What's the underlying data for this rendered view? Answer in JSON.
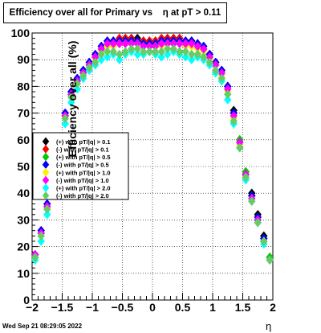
{
  "chart_data": {
    "type": "scatter",
    "title": "Efficiency over all for Primary vs    η at pT > 0.11",
    "xlabel": "η",
    "ylabel": "Efficiency over all (%)",
    "xlim": [
      -2,
      2
    ],
    "ylim": [
      0,
      100
    ],
    "x_ticks": [
      "−2",
      "−1.5",
      "−1",
      "−0.5",
      "0",
      "0.5",
      "1",
      "1.5",
      "2"
    ],
    "y_ticks": [
      "0",
      "10",
      "20",
      "30",
      "40",
      "50",
      "60",
      "70",
      "80",
      "90",
      "100"
    ],
    "grid": true,
    "legend_position": "left-middle",
    "footer": "Wed Sep 21 08:29:05 2022",
    "series": [
      {
        "name": "(+) with pT/|q| > 0.1",
        "color": "#000000",
        "marker": "diamond",
        "x": [
          -1.95,
          -1.85,
          -1.75,
          -1.65,
          -1.55,
          -1.45,
          -1.35,
          -1.25,
          -1.15,
          -1.05,
          -0.95,
          -0.85,
          -0.75,
          -0.65,
          -0.55,
          -0.45,
          -0.35,
          -0.25,
          -0.15,
          -0.05,
          0.05,
          0.15,
          0.25,
          0.35,
          0.45,
          0.55,
          0.65,
          0.75,
          0.85,
          0.95,
          1.05,
          1.15,
          1.25,
          1.35,
          1.45,
          1.55,
          1.65,
          1.75,
          1.85,
          1.95
        ],
        "values": [
          16,
          25,
          35,
          47,
          58,
          69,
          77,
          82,
          86,
          89,
          91,
          95,
          97,
          97,
          97,
          98,
          98,
          98,
          97,
          97,
          97,
          97,
          98,
          98,
          98,
          97,
          97,
          96,
          95,
          92,
          89,
          86,
          80,
          71,
          60,
          48,
          40,
          32,
          24,
          16
        ]
      },
      {
        "name": "(-) with pT/|q| > 0.1",
        "color": "#ff0000",
        "marker": "diamond",
        "x": [
          -1.95,
          -1.85,
          -1.75,
          -1.65,
          -1.55,
          -1.45,
          -1.35,
          -1.25,
          -1.15,
          -1.05,
          -0.95,
          -0.85,
          -0.75,
          -0.65,
          -0.55,
          -0.45,
          -0.35,
          -0.25,
          -0.15,
          -0.05,
          0.05,
          0.15,
          0.25,
          0.35,
          0.45,
          0.55,
          0.65,
          0.75,
          0.85,
          0.95,
          1.05,
          1.15,
          1.25,
          1.35,
          1.45,
          1.55,
          1.65,
          1.75,
          1.85,
          1.95
        ],
        "values": [
          17,
          26,
          36,
          48,
          59,
          70,
          78,
          83,
          86,
          89,
          92,
          95,
          97,
          97,
          98,
          98,
          98,
          97,
          97,
          97,
          97,
          98,
          98,
          98,
          98,
          97,
          97,
          96,
          95,
          92,
          89,
          86,
          80,
          70,
          60,
          48,
          39,
          31,
          23,
          16
        ]
      },
      {
        "name": "(+) with pT/|q| > 0.5",
        "color": "#00cc00",
        "marker": "diamond",
        "x": [
          -1.95,
          -1.85,
          -1.75,
          -1.65,
          -1.55,
          -1.45,
          -1.35,
          -1.25,
          -1.15,
          -1.05,
          -0.95,
          -0.85,
          -0.75,
          -0.65,
          -0.55,
          -0.45,
          -0.35,
          -0.25,
          -0.15,
          -0.05,
          0.05,
          0.15,
          0.25,
          0.35,
          0.45,
          0.55,
          0.65,
          0.75,
          0.85,
          0.95,
          1.05,
          1.15,
          1.25,
          1.35,
          1.45,
          1.55,
          1.65,
          1.75,
          1.85,
          1.95
        ],
        "values": [
          16,
          25,
          35,
          47,
          58,
          69,
          77,
          82,
          86,
          89,
          91,
          94,
          96,
          96,
          96,
          97,
          97,
          97,
          96,
          96,
          96,
          96,
          97,
          97,
          97,
          96,
          96,
          95,
          94,
          91,
          88,
          85,
          79,
          70,
          60,
          48,
          39,
          31,
          23,
          16
        ]
      },
      {
        "name": "(-) with pT/|q| > 0.5",
        "color": "#0000ff",
        "marker": "diamond",
        "x": [
          -1.95,
          -1.85,
          -1.75,
          -1.65,
          -1.55,
          -1.45,
          -1.35,
          -1.25,
          -1.15,
          -1.05,
          -0.95,
          -0.85,
          -0.75,
          -0.65,
          -0.55,
          -0.45,
          -0.35,
          -0.25,
          -0.15,
          -0.05,
          0.05,
          0.15,
          0.25,
          0.35,
          0.45,
          0.55,
          0.65,
          0.75,
          0.85,
          0.95,
          1.05,
          1.15,
          1.25,
          1.35,
          1.45,
          1.55,
          1.65,
          1.75,
          1.85,
          1.95
        ],
        "values": [
          17,
          26,
          36,
          48,
          59,
          70,
          78,
          83,
          86,
          89,
          92,
          95,
          97,
          97,
          97,
          97,
          97,
          97,
          96,
          96,
          96,
          97,
          97,
          97,
          97,
          97,
          97,
          96,
          95,
          92,
          89,
          86,
          80,
          70,
          59,
          47,
          39,
          31,
          23,
          15
        ]
      },
      {
        "name": "(+) with pT/|q| > 1.0",
        "color": "#ffee00",
        "marker": "diamond",
        "x": [
          -1.95,
          -1.85,
          -1.75,
          -1.65,
          -1.55,
          -1.45,
          -1.35,
          -1.25,
          -1.15,
          -1.05,
          -0.95,
          -0.85,
          -0.75,
          -0.65,
          -0.55,
          -0.45,
          -0.35,
          -0.25,
          -0.15,
          -0.05,
          0.05,
          0.15,
          0.25,
          0.35,
          0.45,
          0.55,
          0.65,
          0.75,
          0.85,
          0.95,
          1.05,
          1.15,
          1.25,
          1.35,
          1.45,
          1.55,
          1.65,
          1.75,
          1.85,
          1.95
        ],
        "values": [
          16,
          24,
          34,
          46,
          57,
          68,
          76,
          81,
          85,
          88,
          90,
          93,
          95,
          95,
          96,
          96,
          96,
          96,
          95,
          95,
          95,
          95,
          96,
          96,
          96,
          95,
          95,
          94,
          93,
          90,
          88,
          84,
          78,
          68,
          58,
          46,
          38,
          30,
          22,
          15
        ]
      },
      {
        "name": "(-) with pT/|q| > 1.0",
        "color": "#ff00ff",
        "marker": "diamond",
        "x": [
          -1.95,
          -1.85,
          -1.75,
          -1.65,
          -1.55,
          -1.45,
          -1.35,
          -1.25,
          -1.15,
          -1.05,
          -0.95,
          -0.85,
          -0.75,
          -0.65,
          -0.55,
          -0.45,
          -0.35,
          -0.25,
          -0.15,
          -0.05,
          0.05,
          0.15,
          0.25,
          0.35,
          0.45,
          0.55,
          0.65,
          0.75,
          0.85,
          0.95,
          1.05,
          1.15,
          1.25,
          1.35,
          1.45,
          1.55,
          1.65,
          1.75,
          1.85,
          1.95
        ],
        "values": [
          17,
          25,
          35,
          47,
          58,
          69,
          77,
          82,
          85,
          88,
          91,
          94,
          96,
          96,
          96,
          96,
          96,
          96,
          95,
          95,
          95,
          96,
          96,
          96,
          96,
          96,
          96,
          95,
          94,
          91,
          88,
          85,
          79,
          69,
          59,
          47,
          38,
          30,
          22,
          15
        ]
      },
      {
        "name": "(+) with pT/|q| > 2.0",
        "color": "#00ffff",
        "marker": "diamond",
        "x": [
          -1.95,
          -1.85,
          -1.75,
          -1.65,
          -1.55,
          -1.45,
          -1.35,
          -1.25,
          -1.15,
          -1.05,
          -0.95,
          -0.85,
          -0.75,
          -0.65,
          -0.55,
          -0.45,
          -0.35,
          -0.25,
          -0.15,
          -0.05,
          0.05,
          0.15,
          0.25,
          0.35,
          0.45,
          0.55,
          0.65,
          0.75,
          0.85,
          0.95,
          1.05,
          1.15,
          1.25,
          1.35,
          1.45,
          1.55,
          1.65,
          1.75,
          1.85,
          1.95
        ],
        "values": [
          15,
          22,
          32,
          44,
          55,
          66,
          74,
          79,
          83,
          86,
          88,
          90,
          91,
          92,
          90,
          92,
          93,
          92,
          92,
          93,
          92,
          91,
          92,
          93,
          92,
          91,
          90,
          91,
          90,
          88,
          85,
          82,
          75,
          66,
          57,
          45,
          37,
          29,
          21,
          15
        ]
      },
      {
        "name": "(-) with pT/|q| > 2.0",
        "color": "#66cc66",
        "marker": "diamond",
        "x": [
          -1.95,
          -1.85,
          -1.75,
          -1.65,
          -1.55,
          -1.45,
          -1.35,
          -1.25,
          -1.15,
          -1.05,
          -0.95,
          -0.85,
          -0.75,
          -0.65,
          -0.55,
          -0.45,
          -0.35,
          -0.25,
          -0.15,
          -0.05,
          0.05,
          0.15,
          0.25,
          0.35,
          0.45,
          0.55,
          0.65,
          0.75,
          0.85,
          0.95,
          1.05,
          1.15,
          1.25,
          1.35,
          1.45,
          1.55,
          1.65,
          1.75,
          1.85,
          1.95
        ],
        "values": [
          16,
          24,
          34,
          46,
          57,
          68,
          76,
          81,
          84,
          87,
          89,
          92,
          93,
          93,
          92,
          93,
          94,
          94,
          93,
          93,
          93,
          93,
          94,
          94,
          93,
          93,
          92,
          92,
          91,
          89,
          86,
          83,
          77,
          67,
          57,
          46,
          37,
          29,
          22,
          15
        ]
      }
    ]
  }
}
